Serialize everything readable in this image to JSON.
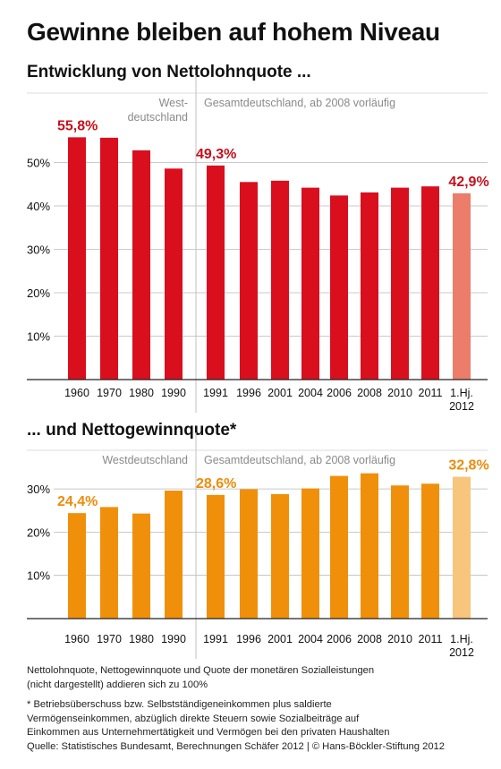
{
  "title": "Gewinne bleiben auf hohem Niveau",
  "notes": {
    "line1": "Nettolohnquote, Nettogewinnquote und Quote der monetären Sozialleistungen",
    "line2": "(nicht dargestellt) addieren sich zu 100%",
    "footnote1": "* Betriebsüberschuss bzw. Selbstständigeneinkommen plus saldierte",
    "footnote2": "Vermögenseinkommen, abzüglich direkte Steuern sowie Sozialbeiträge auf",
    "footnote3": "Einkommen aus Unternehmertätigkeit und Vermögen bei den privaten Haushalten",
    "source": "Quelle: Statistisches Bundesamt, Berechnungen Schäfer 2012 | © Hans-Böckler-Stiftung 2012"
  },
  "chart_data": [
    {
      "type": "bar",
      "title": "Entwicklung von Nettolohnquote ...",
      "panel_labels": {
        "west": [
          "West-",
          "deutschland"
        ],
        "gesamt": "Gesamtdeutschland, ab 2008 vorläufig"
      },
      "categories": [
        "1960",
        "1970",
        "1980",
        "1990",
        "1991",
        "1996",
        "2001",
        "2004",
        "2006",
        "2008",
        "2010",
        "2011",
        "1.Hj. 2012"
      ],
      "values": [
        55.8,
        55.7,
        52.8,
        48.6,
        49.3,
        45.5,
        45.8,
        44.2,
        42.4,
        43.1,
        44.2,
        44.5,
        42.9
      ],
      "data_labels": {
        "0": "55,8%",
        "4": "49,3%",
        "12": "42,9%"
      },
      "yticks": [
        "10%",
        "20%",
        "30%",
        "40%",
        "50%"
      ],
      "ylim": [
        0,
        60
      ],
      "colors": {
        "bar": "#d90f1e",
        "highlight": "#ec7d6a",
        "label": "#c4101c"
      }
    },
    {
      "type": "bar",
      "title": "... und Nettogewinnquote*",
      "panel_labels": {
        "west": [
          "Westdeutschland"
        ],
        "gesamt": "Gesamtdeutschland, ab 2008 vorläufig"
      },
      "categories": [
        "1960",
        "1970",
        "1980",
        "1990",
        "1991",
        "1996",
        "2001",
        "2004",
        "2006",
        "2008",
        "2010",
        "2011",
        "1.Hj. 2012"
      ],
      "values": [
        24.4,
        25.8,
        24.3,
        29.6,
        28.6,
        29.9,
        28.8,
        30.1,
        33.0,
        33.6,
        30.8,
        31.2,
        32.8
      ],
      "data_labels": {
        "0": "24,4%",
        "4": "28,6%",
        "12": "32,8%"
      },
      "yticks": [
        "10%",
        "20%",
        "30%"
      ],
      "ylim": [
        0,
        35
      ],
      "colors": {
        "bar": "#f0900a",
        "highlight": "#f8c57c",
        "label": "#ec8c0a"
      }
    }
  ]
}
